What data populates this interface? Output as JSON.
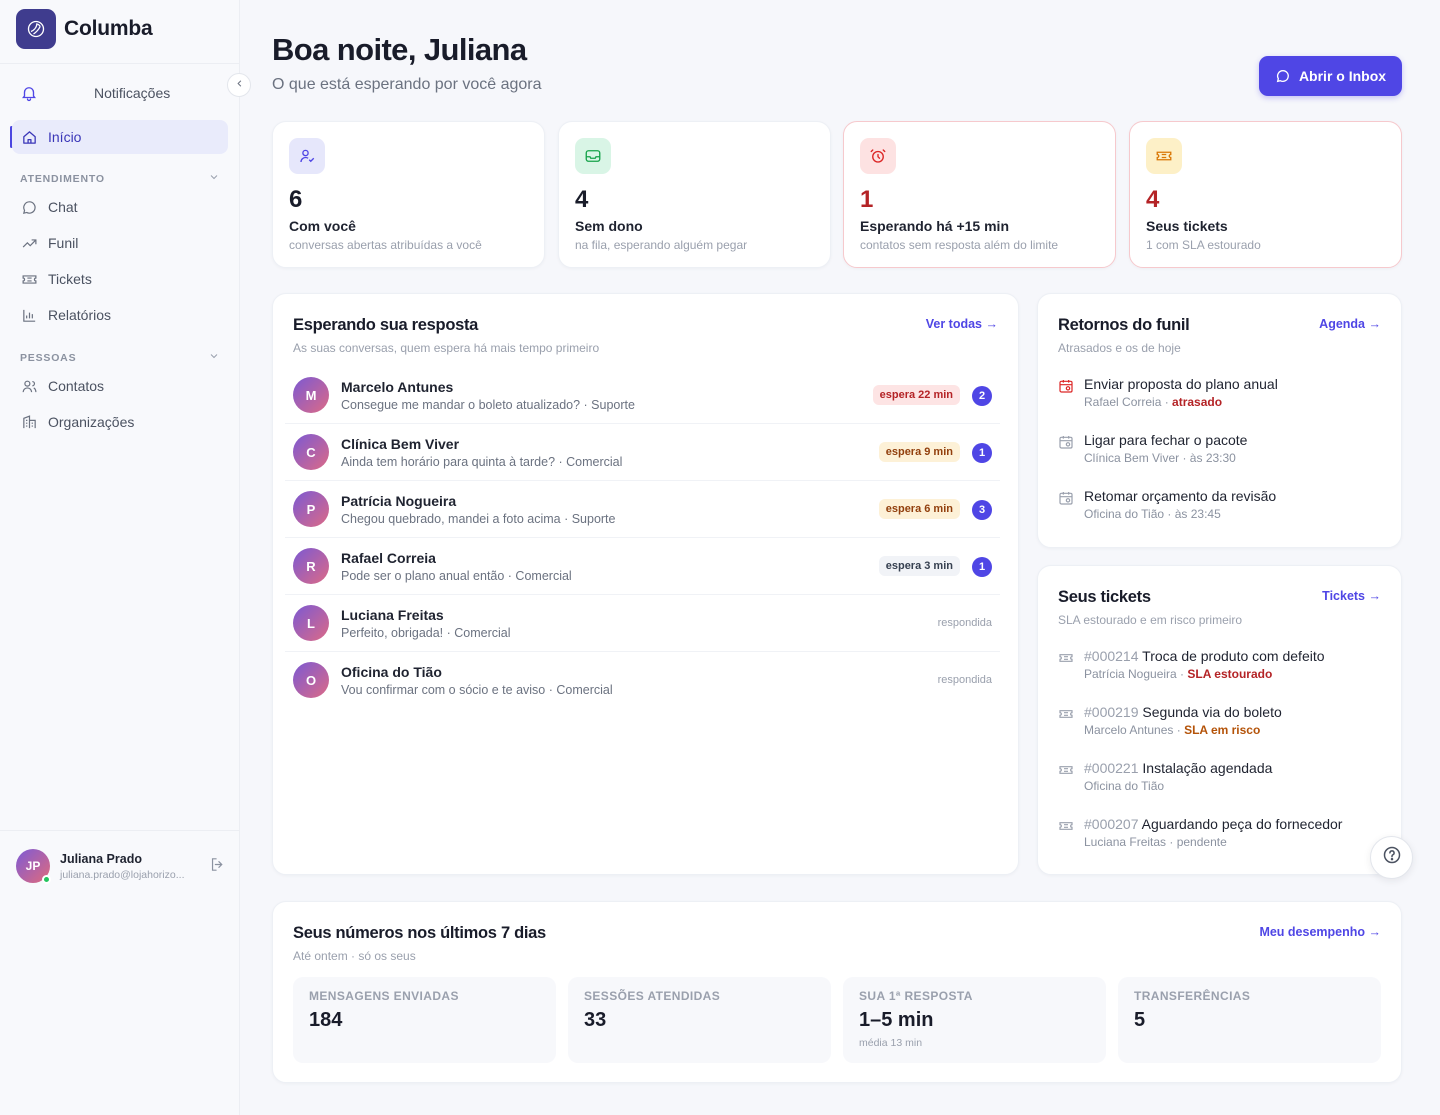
{
  "app": {
    "name": "Columba"
  },
  "sidebar": {
    "notifications_label": "Notificações",
    "home_label": "Início",
    "sections": [
      {
        "title": "ATENDIMENTO",
        "items": [
          {
            "label": "Chat",
            "icon": "chat-icon"
          },
          {
            "label": "Funil",
            "icon": "trend-icon"
          },
          {
            "label": "Tickets",
            "icon": "ticket-icon"
          },
          {
            "label": "Relatórios",
            "icon": "bar-chart-icon"
          }
        ]
      },
      {
        "title": "PESSOAS",
        "items": [
          {
            "label": "Contatos",
            "icon": "users-icon"
          },
          {
            "label": "Organizações",
            "icon": "building-icon"
          }
        ]
      }
    ],
    "user": {
      "initials": "JP",
      "name": "Juliana Prado",
      "email": "juliana.prado@lojahorizo..."
    }
  },
  "header": {
    "title": "Boa noite, Juliana",
    "subtitle": "O que está esperando por você agora",
    "inbox_button": "Abrir o Inbox"
  },
  "stats": [
    {
      "value": "6",
      "label": "Com você",
      "desc": "conversas abertas atribuídas a você"
    },
    {
      "value": "4",
      "label": "Sem dono",
      "desc": "na fila, esperando alguém pegar"
    },
    {
      "value": "1",
      "label": "Esperando há +15 min",
      "desc": "contatos sem resposta além do limite"
    },
    {
      "value": "4",
      "label": "Seus tickets",
      "desc": "1 com SLA estourado"
    }
  ],
  "waiting": {
    "title": "Esperando sua resposta",
    "subtitle": "As suas conversas, quem espera há mais tempo primeiro",
    "link": "Ver todas",
    "rows": [
      {
        "initial": "M",
        "name": "Marcelo Antunes",
        "message": "Consegue me mandar o boleto atualizado? · Suporte",
        "wait": "espera 22 min",
        "count": "2"
      },
      {
        "initial": "C",
        "name": "Clínica Bem Viver",
        "message": "Ainda tem horário para quinta à tarde? · Comercial",
        "wait": "espera 9 min",
        "count": "1"
      },
      {
        "initial": "P",
        "name": "Patrícia Nogueira",
        "message": "Chegou quebrado, mandei a foto acima · Suporte",
        "wait": "espera 6 min",
        "count": "3"
      },
      {
        "initial": "R",
        "name": "Rafael Correia",
        "message": "Pode ser o plano anual então · Comercial",
        "wait": "espera 3 min",
        "count": "1"
      },
      {
        "initial": "L",
        "name": "Luciana Freitas",
        "message": "Perfeito, obrigada! · Comercial",
        "status": "respondida"
      },
      {
        "initial": "O",
        "name": "Oficina do Tião",
        "message": "Vou confirmar com o sócio e te aviso · Comercial",
        "status": "respondida"
      }
    ]
  },
  "funnel": {
    "title": "Retornos do funil",
    "subtitle": "Atrasados e os de hoje",
    "link": "Agenda",
    "items": [
      {
        "title": "Enviar proposta do plano anual",
        "who": "Rafael Correia",
        "sep": " · ",
        "status": "atrasado"
      },
      {
        "title": "Ligar para fechar o pacote",
        "who": "Clínica Bem Viver · às 23:30"
      },
      {
        "title": "Retomar orçamento da revisão",
        "who": "Oficina do Tião · às 23:45"
      }
    ]
  },
  "tickets": {
    "title": "Seus tickets",
    "subtitle": "SLA estourado e em risco primeiro",
    "link": "Tickets",
    "items": [
      {
        "number": "#000214",
        "title": "Troca de produto com defeito",
        "who": "Patrícia Nogueira",
        "sep": " · ",
        "status": "SLA estourado"
      },
      {
        "number": "#000219",
        "title": "Segunda via do boleto",
        "who": "Marcelo Antunes",
        "sep": " · ",
        "status": "SLA em risco"
      },
      {
        "number": "#000221",
        "title": "Instalação agendada",
        "who": "Oficina do Tião"
      },
      {
        "number": "#000207",
        "title": "Aguardando peça do fornecedor",
        "who": "Luciana Freitas · pendente"
      }
    ]
  },
  "metrics": {
    "title": "Seus números nos últimos 7 dias",
    "subtitle": "Até ontem · só os seus",
    "link": "Meu desempenho",
    "items": [
      {
        "label": "MENSAGENS ENVIADAS",
        "value": "184"
      },
      {
        "label": "SESSÕES ATENDIDAS",
        "value": "33"
      },
      {
        "label": "SUA 1ª RESPOSTA",
        "value": "1–5 min",
        "note": "média 13 min"
      },
      {
        "label": "TRANSFERÊNCIAS",
        "value": "5"
      }
    ]
  },
  "colors": {
    "accent": "#4f46e5",
    "danger": "#b42326",
    "warning": "#b45309"
  }
}
